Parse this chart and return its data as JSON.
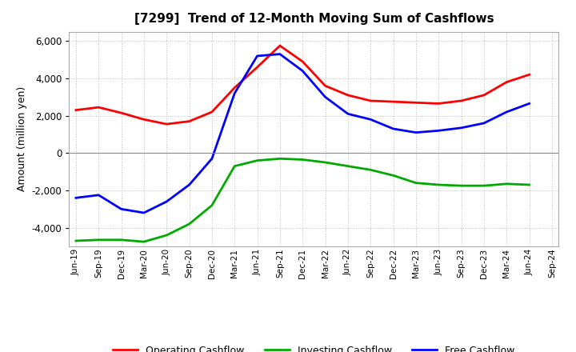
{
  "title": "[7299]  Trend of 12-Month Moving Sum of Cashflows",
  "ylabel": "Amount (million yen)",
  "x_labels": [
    "Jun-19",
    "Sep-19",
    "Dec-19",
    "Mar-20",
    "Jun-20",
    "Sep-20",
    "Dec-20",
    "Mar-21",
    "Jun-21",
    "Sep-21",
    "Dec-21",
    "Mar-22",
    "Jun-22",
    "Sep-22",
    "Dec-22",
    "Mar-23",
    "Jun-23",
    "Sep-23",
    "Dec-23",
    "Mar-24",
    "Jun-24",
    "Sep-24"
  ],
  "operating": [
    2300,
    2450,
    2150,
    1800,
    1550,
    1700,
    2200,
    3500,
    4600,
    5750,
    4900,
    3600,
    3100,
    2800,
    2750,
    2700,
    2650,
    2800,
    3100,
    3800,
    4200,
    null
  ],
  "investing": [
    -4700,
    -4650,
    -4650,
    -4750,
    -4400,
    -3800,
    -2800,
    -700,
    -400,
    -300,
    -350,
    -500,
    -700,
    -900,
    -1200,
    -1600,
    -1700,
    -1750,
    -1750,
    -1650,
    -1700,
    null
  ],
  "free": [
    -2400,
    -2250,
    -3000,
    -3200,
    -2600,
    -1700,
    -300,
    3200,
    5200,
    5300,
    4400,
    3000,
    2100,
    1800,
    1300,
    1100,
    1200,
    1350,
    1600,
    2200,
    2650,
    null
  ],
  "operating_color": "#ff0000",
  "investing_color": "#00aa00",
  "free_color": "#0000ff",
  "bg_color": "#ffffff",
  "plot_bg_color": "#ffffff",
  "ylim": [
    -5000,
    6500
  ],
  "yticks": [
    -4000,
    -2000,
    0,
    2000,
    4000,
    6000
  ],
  "grid_color": "#bbbbbb",
  "linewidth": 2.0
}
